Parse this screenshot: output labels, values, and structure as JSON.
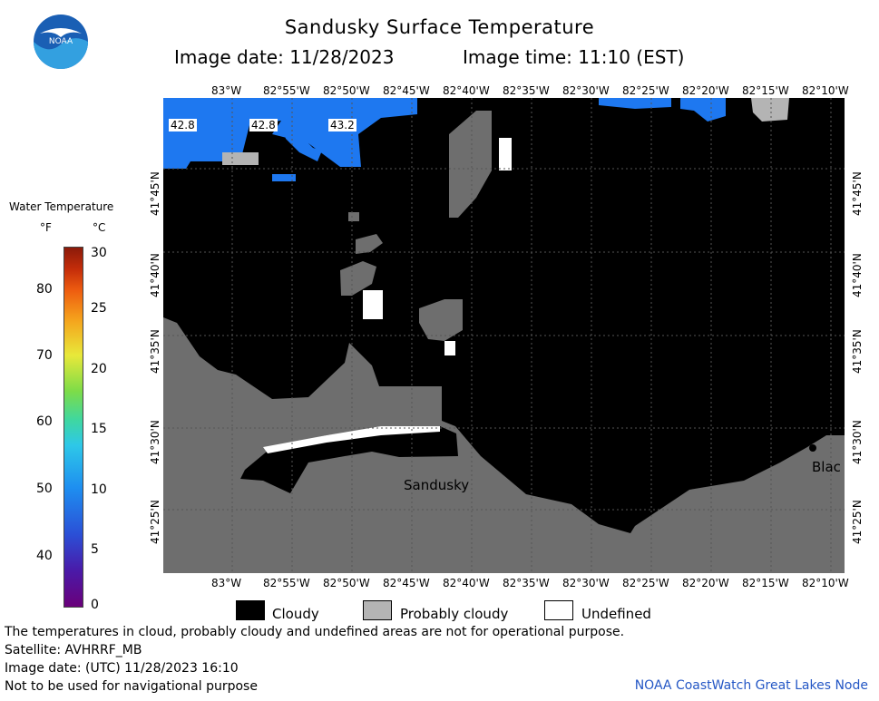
{
  "header": {
    "title": "Sandusky Surface Temperature",
    "image_date": "Image date: 11/28/2023",
    "image_time": "Image time: 11:10 (EST)"
  },
  "logo": {
    "text": "NOAA",
    "icon": "noaa-logo-icon"
  },
  "map": {
    "lon_labels": [
      "83°W",
      "82°55'W",
      "82°50'W",
      "82°45'W",
      "82°40'W",
      "82°35'W",
      "82°30'W",
      "82°25'W",
      "82°20'W",
      "82°15'W",
      "82°10'W"
    ],
    "lat_labels": [
      "41°45'N",
      "41°40'N",
      "41°35'N",
      "41°30'N",
      "41°25'N"
    ],
    "city_label": "Sandusky",
    "city_label_east": "Blac",
    "temps": [
      "42.8",
      "42.8",
      "43.2"
    ]
  },
  "colorbar": {
    "title": "Water Temperature",
    "unit_f": "°F",
    "unit_c": "°C",
    "fahrenheit_ticks": [
      "80",
      "70",
      "60",
      "50",
      "40"
    ],
    "celsius_ticks": [
      "30",
      "25",
      "20",
      "15",
      "10",
      "5",
      "0"
    ]
  },
  "legend": {
    "cloudy": "Cloudy",
    "probably_cloudy": "Probably cloudy",
    "undefined": "Undefined",
    "colors": {
      "cloudy": "#000000",
      "probably_cloudy": "#b4b4b4",
      "undefined": "#ffffff",
      "land": "#6e6e6e",
      "water_cold": "#1e78f0"
    }
  },
  "footer": {
    "disclaimer": "The temperatures in cloud, probably cloudy and undefined areas are not for operational purpose.",
    "satellite": "Satellite: AVHRRF_MB",
    "utc_date": "Image date: (UTC) 11/28/2023  16:10",
    "nav_warning": "Not to be used for navigational purpose",
    "node": "NOAA CoastWatch Great Lakes Node"
  }
}
